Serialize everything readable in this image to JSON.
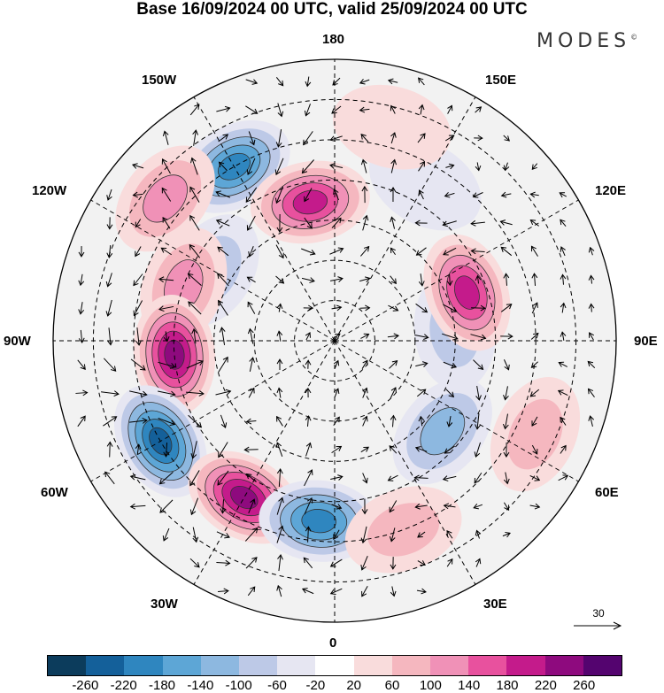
{
  "title": "Base 16/09/2024 00 UTC, valid 25/09/2024 00 UTC",
  "brand": "MODES",
  "brand_mark": "©",
  "labels": {
    "top": "180",
    "bottom": "0",
    "left": "90W",
    "right": "90E",
    "upper_left_1": "150W",
    "upper_left_2": "120W",
    "upper_right_1": "150E",
    "upper_right_2": "120E",
    "lower_left_1": "60W",
    "lower_left_2": "30W",
    "lower_right_1": "60E",
    "lower_right_2": "30E"
  },
  "vector_reference": "30",
  "colorbar": {
    "ticks": [
      "-260",
      "-220",
      "-180",
      "-140",
      "-100",
      "-60",
      "-20",
      "20",
      "60",
      "100",
      "140",
      "180",
      "220",
      "260"
    ],
    "colors": [
      "#0c3c5c",
      "#14609a",
      "#2f86bf",
      "#5da6d6",
      "#8db8e0",
      "#bdc9e7",
      "#e6e6f2",
      "#ffffff",
      "#f9dcdc",
      "#f5b7bf",
      "#f091b7",
      "#e8519e",
      "#c41b8b",
      "#8e0a7e",
      "#54046f"
    ]
  },
  "map": {
    "anomalies": [
      {
        "lon": 210,
        "lat": 40,
        "value": -210
      },
      {
        "lon": 190,
        "lat": 55,
        "value": 200
      },
      {
        "lon": 230,
        "lat": 35,
        "value": 110
      },
      {
        "lon": 240,
        "lat": 55,
        "value": -90
      },
      {
        "lon": 250,
        "lat": 50,
        "value": 120
      },
      {
        "lon": 275,
        "lat": 50,
        "value": 240
      },
      {
        "lon": 300,
        "lat": 40,
        "value": -230
      },
      {
        "lon": 330,
        "lat": 45,
        "value": 230
      },
      {
        "lon": 355,
        "lat": 45,
        "value": -190
      },
      {
        "lon": 20,
        "lat": 40,
        "value": 70
      },
      {
        "lon": 50,
        "lat": 55,
        "value": -110
      },
      {
        "lon": 65,
        "lat": 35,
        "value": 90
      },
      {
        "lon": 95,
        "lat": 60,
        "value": -100
      },
      {
        "lon": 110,
        "lat": 55,
        "value": 190
      },
      {
        "lon": 150,
        "lat": 45,
        "value": -60
      },
      {
        "lon": 165,
        "lat": 35,
        "value": 60
      }
    ]
  }
}
